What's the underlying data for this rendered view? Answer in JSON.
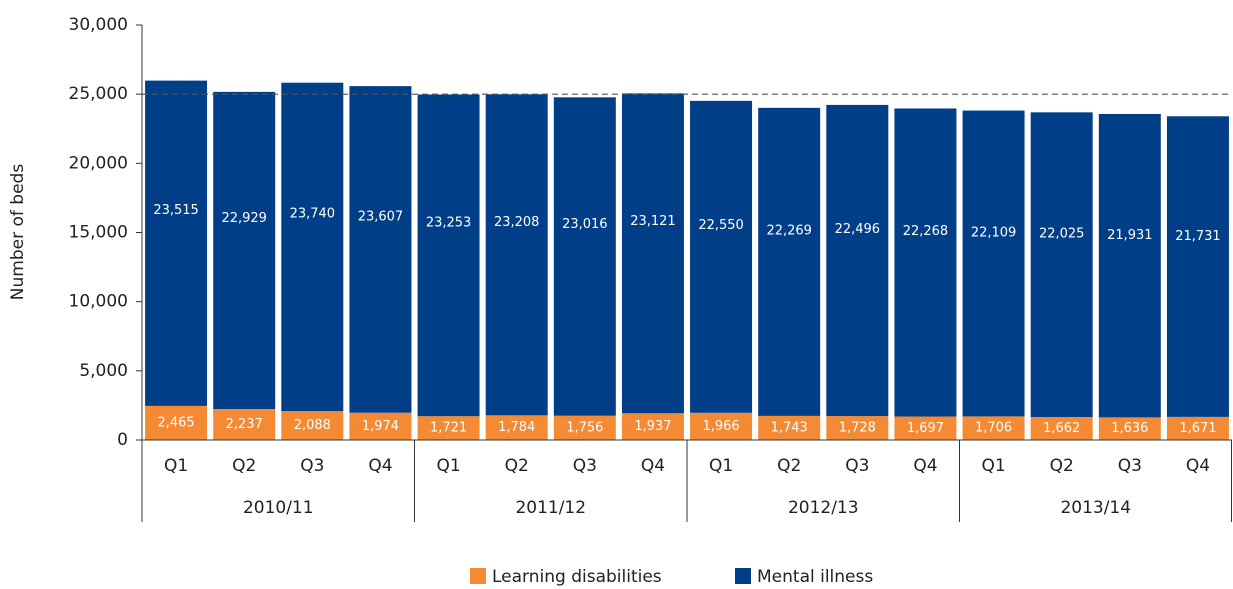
{
  "chart_data": {
    "type": "stacked_bar",
    "y_axis_label": "Number of beds",
    "categories": [
      "Q1",
      "Q2",
      "Q3",
      "Q4",
      "Q1",
      "Q2",
      "Q3",
      "Q4",
      "Q1",
      "Q2",
      "Q3",
      "Q4",
      "Q1",
      "Q2",
      "Q3",
      "Q4"
    ],
    "groups": [
      "2010/11",
      "2011/12",
      "2012/13",
      "2013/14"
    ],
    "series": [
      {
        "name": "Learning disabilities",
        "color": "#f58a34",
        "values": [
          2465,
          2237,
          2088,
          1974,
          1721,
          1784,
          1756,
          1937,
          1966,
          1743,
          1728,
          1697,
          1706,
          1662,
          1636,
          1671
        ],
        "value_labels": [
          "2,465",
          "2,237",
          "2,088",
          "1,974",
          "1,721",
          "1,784",
          "1,756",
          "1,937",
          "1,966",
          "1,743",
          "1,728",
          "1,697",
          "1,706",
          "1,662",
          "1,636",
          "1,671"
        ]
      },
      {
        "name": "Mental illness",
        "color": "#003f87",
        "values": [
          23515,
          22929,
          23740,
          23607,
          23253,
          23208,
          23016,
          23121,
          22550,
          22269,
          22496,
          22268,
          22109,
          22025,
          21931,
          21731
        ],
        "value_labels": [
          "23,515",
          "22,929",
          "23,740",
          "23,607",
          "23,253",
          "23,208",
          "23,016",
          "23,121",
          "22,550",
          "22,269",
          "22,496",
          "22,268",
          "22,109",
          "22,025",
          "21,931",
          "21,731"
        ]
      }
    ],
    "ylim": [
      0,
      30000
    ],
    "yticks": [
      0,
      {
        "value": 5000,
        "label": "5,000"
      },
      {
        "value": 10000,
        "label": "10,000"
      },
      {
        "value": 15000,
        "label": "15,000"
      },
      {
        "value": 20000,
        "label": "20,000"
      },
      {
        "value": 25000,
        "label": "25,000"
      },
      {
        "value": 30000,
        "label": "30,000"
      }
    ],
    "reference_line": 25000,
    "legend": "bottom"
  }
}
